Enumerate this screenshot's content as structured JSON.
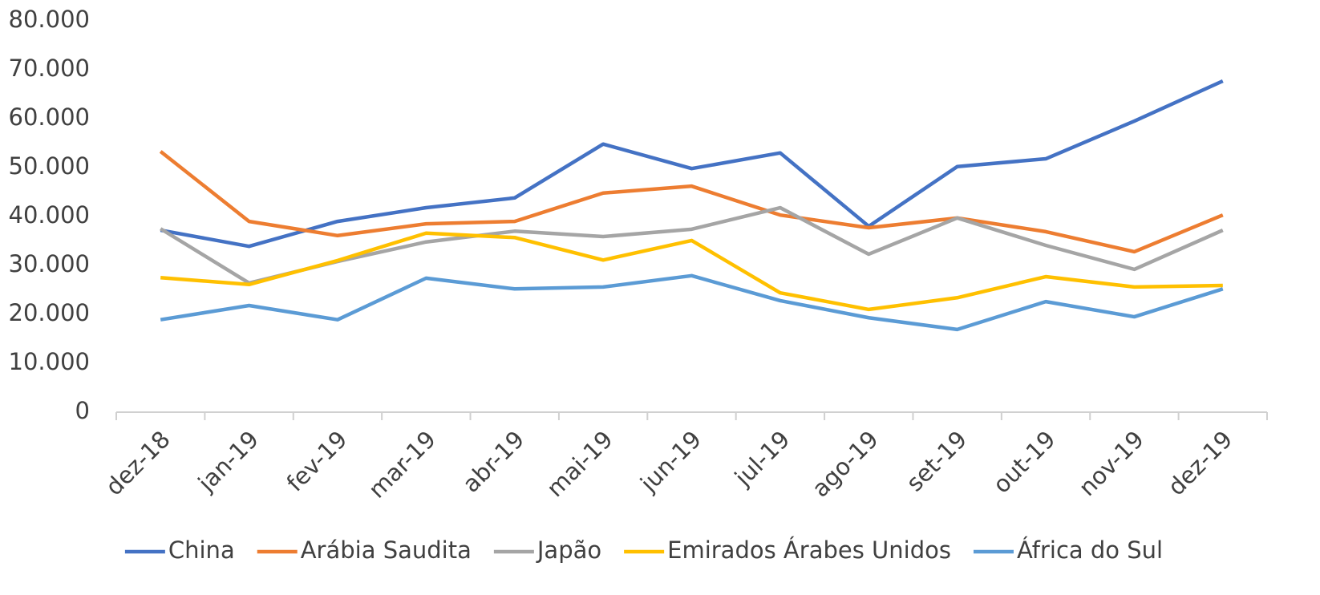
{
  "chart_data": {
    "type": "line",
    "categories": [
      "dez-18",
      "jan-19",
      "fev-19",
      "mar-19",
      "abr-19",
      "mai-19",
      "jun-19",
      "jul-19",
      "ago-19",
      "set-19",
      "out-19",
      "nov-19",
      "dez-19"
    ],
    "series": [
      {
        "name": "China",
        "color": "#4472c4",
        "values": [
          37200,
          33900,
          39000,
          41800,
          43800,
          54800,
          49800,
          53000,
          38000,
          50200,
          51800,
          59500,
          67700
        ]
      },
      {
        "name": "Arábia Saudita",
        "color": "#ed7d31",
        "values": [
          53300,
          39000,
          36100,
          38500,
          39000,
          44800,
          46200,
          40300,
          37700,
          39700,
          36900,
          32800,
          40300
        ]
      },
      {
        "name": "Japão",
        "color": "#a5a5a5",
        "values": [
          37500,
          26400,
          30800,
          34800,
          37000,
          35900,
          37400,
          41800,
          32300,
          39700,
          34100,
          29200,
          37200
        ]
      },
      {
        "name": "Emirados Árabes Unidos",
        "color": "#ffc000",
        "values": [
          27500,
          26100,
          31000,
          36600,
          35700,
          31100,
          35100,
          24400,
          21000,
          23400,
          27700,
          25600,
          25900
        ]
      },
      {
        "name": "África do Sul",
        "color": "#5b9bd5",
        "values": [
          18900,
          21800,
          18900,
          27400,
          25200,
          25600,
          27900,
          22800,
          19300,
          16900,
          22600,
          19500,
          25200
        ]
      }
    ],
    "ylim": [
      0,
      80000
    ],
    "yticks": [
      0,
      {
        "value": 10000,
        "label": "10.000"
      },
      {
        "value": 20000,
        "label": "20.000"
      },
      {
        "value": 30000,
        "label": "30.000"
      },
      {
        "value": 40000,
        "label": "40.000"
      },
      {
        "value": 50000,
        "label": "50.000"
      },
      {
        "value": 60000,
        "label": "60.000"
      },
      {
        "value": 70000,
        "label": "70.000"
      },
      {
        "value": 80000,
        "label": "80.000"
      }
    ],
    "legend": "bottom"
  }
}
